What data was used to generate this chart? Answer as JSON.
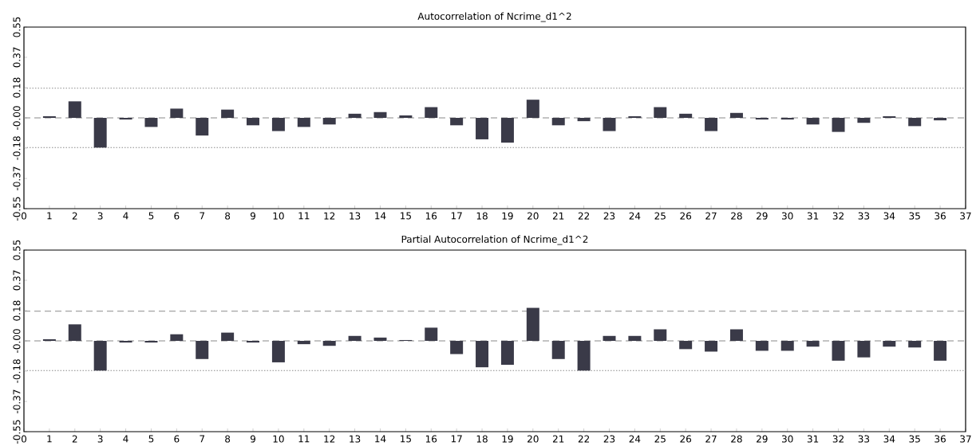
{
  "chart_data": [
    {
      "type": "bar",
      "title": "Autocorrelation of Ncrime_d1^2",
      "color": "#3a3a48",
      "x": [
        1,
        2,
        3,
        4,
        5,
        6,
        7,
        8,
        9,
        10,
        11,
        12,
        13,
        14,
        15,
        16,
        17,
        18,
        19,
        20,
        21,
        22,
        23,
        24,
        25,
        26,
        27,
        28,
        29,
        30,
        31,
        32,
        33,
        34,
        35,
        36
      ],
      "values": [
        0.01,
        0.1,
        -0.18,
        -0.01,
        -0.055,
        0.056,
        -0.107,
        0.05,
        -0.045,
        -0.08,
        -0.055,
        -0.04,
        0.025,
        0.035,
        0.015,
        0.065,
        -0.045,
        -0.13,
        -0.15,
        0.11,
        -0.045,
        -0.02,
        -0.08,
        0.01,
        0.065,
        0.025,
        -0.08,
        0.03,
        -0.01,
        -0.01,
        -0.04,
        -0.085,
        -0.03,
        0.01,
        -0.05,
        -0.015
      ],
      "xlim": [
        0,
        37
      ],
      "ylim": [
        -0.55,
        0.55
      ],
      "xticks": [
        0,
        1,
        2,
        3,
        4,
        5,
        6,
        7,
        8,
        9,
        10,
        11,
        12,
        13,
        14,
        15,
        16,
        17,
        18,
        19,
        20,
        21,
        22,
        23,
        24,
        25,
        26,
        27,
        28,
        29,
        30,
        31,
        32,
        33,
        34,
        35,
        36,
        37
      ],
      "yticks": [
        {
          "value": -0.55,
          "label": "-0.55"
        },
        {
          "value": -0.367,
          "label": "-0.37"
        },
        {
          "value": -0.183,
          "label": "-0.18"
        },
        {
          "value": 0,
          "label": "-0.00"
        },
        {
          "value": 0.183,
          "label": "0.18"
        },
        {
          "value": 0.367,
          "label": "0.37"
        },
        {
          "value": 0.55,
          "label": "0.55"
        }
      ],
      "ref_lines": [
        {
          "axis": "y",
          "value": 0.18,
          "line_style": "dotted",
          "color": "#8a8a8a"
        },
        {
          "axis": "y",
          "value": -0.18,
          "line_style": "dotted",
          "color": "#8a8a8a"
        },
        {
          "axis": "y",
          "value": 0,
          "line_style": "dashed",
          "color": "#8a8a8a"
        }
      ]
    },
    {
      "type": "bar",
      "title": "Partial Autocorrelation of Ncrime_d1^2",
      "color": "#3a3a48",
      "x": [
        1,
        2,
        3,
        4,
        5,
        6,
        7,
        8,
        9,
        10,
        11,
        12,
        13,
        14,
        15,
        16,
        17,
        18,
        19,
        20,
        21,
        22,
        23,
        24,
        25,
        26,
        27,
        28,
        29,
        30,
        31,
        32,
        33,
        34,
        35,
        36
      ],
      "values": [
        0.01,
        0.1,
        -0.18,
        -0.01,
        -0.01,
        0.04,
        -0.11,
        0.05,
        -0.01,
        -0.13,
        -0.02,
        -0.03,
        0.03,
        0.02,
        0.005,
        0.08,
        -0.08,
        -0.16,
        -0.145,
        0.2,
        -0.11,
        -0.18,
        0.03,
        0.03,
        0.07,
        -0.05,
        -0.065,
        0.07,
        -0.06,
        -0.06,
        -0.035,
        -0.12,
        -0.1,
        -0.035,
        -0.04,
        -0.12
      ],
      "xlim": [
        0,
        37
      ],
      "ylim": [
        -0.55,
        0.55
      ],
      "xticks": [
        0,
        1,
        2,
        3,
        4,
        5,
        6,
        7,
        8,
        9,
        10,
        11,
        12,
        13,
        14,
        15,
        16,
        17,
        18,
        19,
        20,
        21,
        22,
        23,
        24,
        25,
        26,
        27,
        28,
        29,
        30,
        31,
        32,
        33,
        34,
        35,
        36,
        37
      ],
      "yticks": [
        {
          "value": -0.55,
          "label": "-0.55"
        },
        {
          "value": -0.367,
          "label": "-0.37"
        },
        {
          "value": -0.183,
          "label": "-0.18"
        },
        {
          "value": 0,
          "label": "-0.00"
        },
        {
          "value": 0.183,
          "label": "0.18"
        },
        {
          "value": 0.367,
          "label": "0.37"
        },
        {
          "value": 0.55,
          "label": "0.55"
        }
      ],
      "ref_lines": [
        {
          "axis": "y",
          "value": 0.18,
          "line_style": "dashed",
          "color": "#8a8a8a"
        },
        {
          "axis": "y",
          "value": -0.18,
          "line_style": "dotted",
          "color": "#8a8a8a"
        },
        {
          "axis": "y",
          "value": 0,
          "line_style": "dashed",
          "color": "#8a8a8a"
        }
      ]
    }
  ]
}
